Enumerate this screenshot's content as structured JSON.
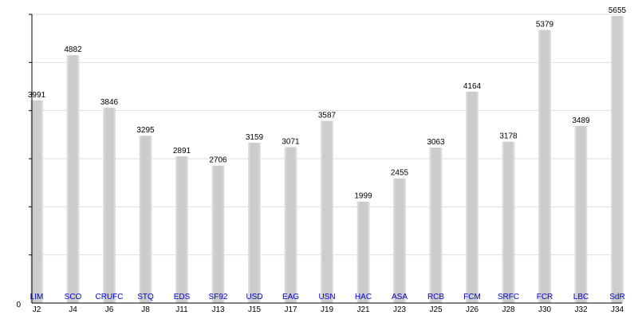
{
  "chart_data": {
    "type": "bar",
    "title": "",
    "xlabel": "",
    "ylabel": "",
    "ylim": [
      0,
      5655
    ],
    "y_tick_labels": [
      "0"
    ],
    "grid": true,
    "categories": [
      "J2",
      "J4",
      "J6",
      "J8",
      "J11",
      "J13",
      "J15",
      "J17",
      "J19",
      "J21",
      "J23",
      "J25",
      "J26",
      "J28",
      "J30",
      "J32",
      "J34"
    ],
    "bar_labels": [
      "LIM",
      "SCO",
      "CRUFC",
      "STQ",
      "EDS",
      "SF92",
      "USD",
      "EAG",
      "USN",
      "HAC",
      "ASA",
      "RCB",
      "FCM",
      "SRFC",
      "FCR",
      "LBC",
      "SdR"
    ],
    "values": [
      3991,
      4882,
      3846,
      3295,
      2891,
      2706,
      3159,
      3071,
      3587,
      1999,
      2455,
      3063,
      4164,
      3178,
      5379,
      3489,
      5655
    ],
    "colors": {
      "bar": "#cccccc",
      "bar_label": "#0000cc",
      "text": "#000000",
      "grid": "#dddddd",
      "axis": "#000000"
    }
  }
}
